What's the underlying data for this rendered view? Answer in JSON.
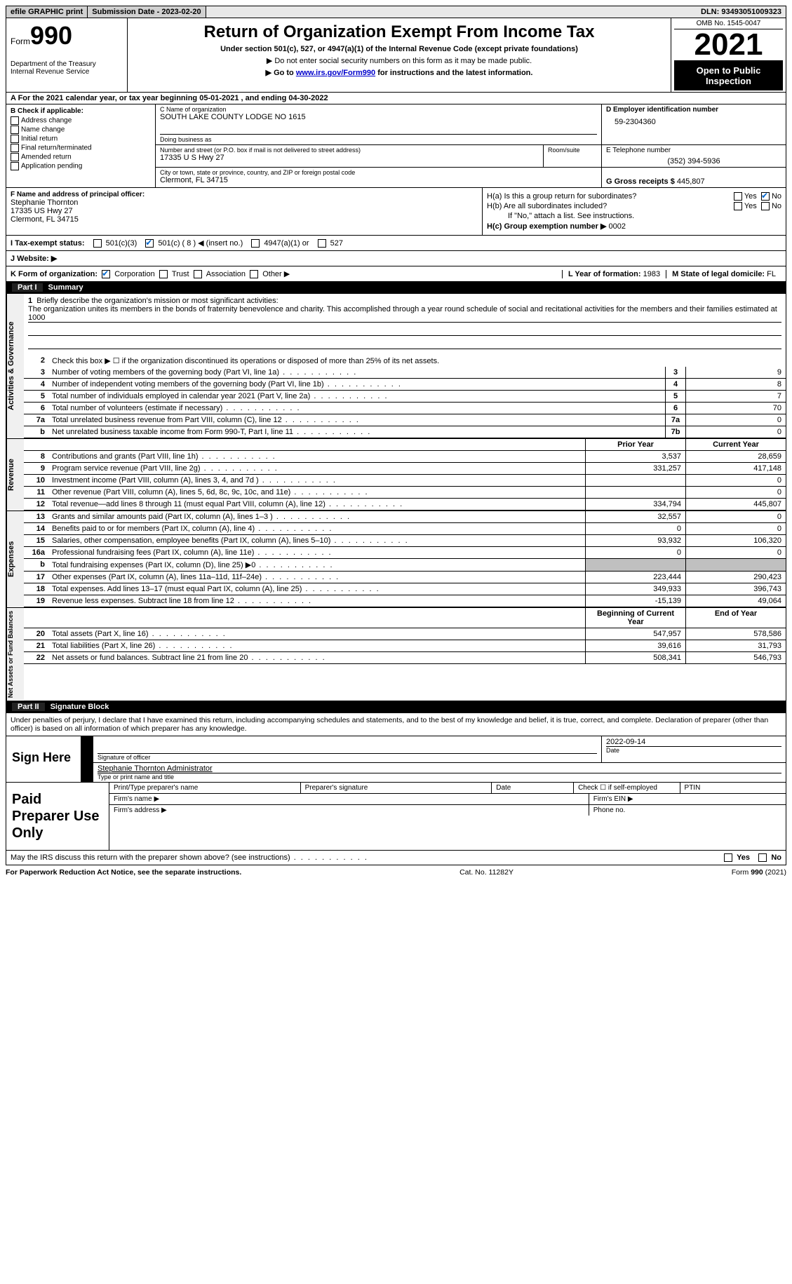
{
  "topbar": {
    "efile": "efile GRAPHIC print",
    "submission_label": "Submission Date - ",
    "submission_date": "2023-02-20",
    "dln_label": "DLN: ",
    "dln": "93493051009323"
  },
  "header": {
    "form_prefix": "Form",
    "form_number": "990",
    "dept": "Department of the Treasury\nInternal Revenue Service",
    "title": "Return of Organization Exempt From Income Tax",
    "subtitle": "Under section 501(c), 527, or 4947(a)(1) of the Internal Revenue Code (except private foundations)",
    "note1": "▶ Do not enter social security numbers on this form as it may be made public.",
    "note2_pre": "▶ Go to ",
    "note2_link": "www.irs.gov/Form990",
    "note2_post": " for instructions and the latest information.",
    "omb": "OMB No. 1545-0047",
    "year": "2021",
    "open": "Open to Public Inspection"
  },
  "rowA": {
    "text_pre": "A For the 2021 calendar year, or tax year beginning ",
    "begin": "05-01-2021",
    "text_mid": " , and ending ",
    "end": "04-30-2022"
  },
  "colB": {
    "header": "B Check if applicable:",
    "opts": [
      "Address change",
      "Name change",
      "Initial return",
      "Final return/terminated",
      "Amended return",
      "Application pending"
    ]
  },
  "colC": {
    "name_label": "C Name of organization",
    "name": "SOUTH LAKE COUNTY LODGE NO 1615",
    "dba_label": "Doing business as",
    "dba": "",
    "addr_label": "Number and street (or P.O. box if mail is not delivered to street address)",
    "room_label": "Room/suite",
    "addr": "17335 U S Hwy 27",
    "city_label": "City or town, state or province, country, and ZIP or foreign postal code",
    "city": "Clermont, FL  34715"
  },
  "colD": {
    "ein_label": "D Employer identification number",
    "ein": "59-2304360",
    "phone_label": "E Telephone number",
    "phone": "(352) 394-5936",
    "gross_label": "G Gross receipts $ ",
    "gross": "445,807"
  },
  "rowF": {
    "label": "F Name and address of principal officer:",
    "name": "Stephanie Thornton",
    "addr1": "17335 US Hwy 27",
    "addr2": "Clermont, FL  34715"
  },
  "rowH": {
    "a_label": "H(a)  Is this a group return for subordinates?",
    "a_yes": "Yes",
    "a_no": "No",
    "b_label": "H(b)  Are all subordinates included?",
    "b_yes": "Yes",
    "b_no": "No",
    "b_note": "If \"No,\" attach a list. See instructions.",
    "c_label": "H(c)  Group exemption number ▶ ",
    "c_val": "0002"
  },
  "rowI": {
    "label": "I  Tax-exempt status:",
    "o1": "501(c)(3)",
    "o2": "501(c) ( 8 ) ◀ (insert no.)",
    "o3": "4947(a)(1) or",
    "o4": "527"
  },
  "rowJ": {
    "label": "J  Website: ▶",
    "val": ""
  },
  "rowK": {
    "label": "K Form of organization:",
    "o1": "Corporation",
    "o2": "Trust",
    "o3": "Association",
    "o4": "Other ▶",
    "year_label": "L Year of formation: ",
    "year": "1983",
    "state_label": "M State of legal domicile: ",
    "state": "FL"
  },
  "part1": {
    "num": "Part I",
    "title": "Summary"
  },
  "mission": {
    "label": "Briefly describe the organization's mission or most significant activities:",
    "text": "The organization unites its members in the bonds of fraternity benevolence and charity. This accomplished through a year round schedule of social and recitational activities for the members and their families estimated at 1000"
  },
  "line2": "Check this box ▶ ☐ if the organization discontinued its operations or disposed of more than 25% of its net assets.",
  "gov_lines": [
    {
      "n": "3",
      "t": "Number of voting members of the governing body (Part VI, line 1a)",
      "box": "3",
      "v": "9"
    },
    {
      "n": "4",
      "t": "Number of independent voting members of the governing body (Part VI, line 1b)",
      "box": "4",
      "v": "8"
    },
    {
      "n": "5",
      "t": "Total number of individuals employed in calendar year 2021 (Part V, line 2a)",
      "box": "5",
      "v": "7"
    },
    {
      "n": "6",
      "t": "Total number of volunteers (estimate if necessary)",
      "box": "6",
      "v": "70"
    },
    {
      "n": "7a",
      "t": "Total unrelated business revenue from Part VIII, column (C), line 12",
      "box": "7a",
      "v": "0"
    },
    {
      "n": "b",
      "t": "Net unrelated business taxable income from Form 990-T, Part I, line 11",
      "box": "7b",
      "v": "0"
    }
  ],
  "two_col_hdr": {
    "py": "Prior Year",
    "cy": "Current Year"
  },
  "rev_lines": [
    {
      "n": "8",
      "t": "Contributions and grants (Part VIII, line 1h)",
      "py": "3,537",
      "cy": "28,659"
    },
    {
      "n": "9",
      "t": "Program service revenue (Part VIII, line 2g)",
      "py": "331,257",
      "cy": "417,148"
    },
    {
      "n": "10",
      "t": "Investment income (Part VIII, column (A), lines 3, 4, and 7d )",
      "py": "",
      "cy": "0"
    },
    {
      "n": "11",
      "t": "Other revenue (Part VIII, column (A), lines 5, 6d, 8c, 9c, 10c, and 11e)",
      "py": "",
      "cy": "0"
    },
    {
      "n": "12",
      "t": "Total revenue—add lines 8 through 11 (must equal Part VIII, column (A), line 12)",
      "py": "334,794",
      "cy": "445,807"
    }
  ],
  "exp_lines": [
    {
      "n": "13",
      "t": "Grants and similar amounts paid (Part IX, column (A), lines 1–3 )",
      "py": "32,557",
      "cy": "0"
    },
    {
      "n": "14",
      "t": "Benefits paid to or for members (Part IX, column (A), line 4)",
      "py": "0",
      "cy": "0"
    },
    {
      "n": "15",
      "t": "Salaries, other compensation, employee benefits (Part IX, column (A), lines 5–10)",
      "py": "93,932",
      "cy": "106,320"
    },
    {
      "n": "16a",
      "t": "Professional fundraising fees (Part IX, column (A), line 11e)",
      "py": "0",
      "cy": "0"
    },
    {
      "n": "b",
      "t": "Total fundraising expenses (Part IX, column (D), line 25) ▶0",
      "py": "shade",
      "cy": "shade"
    },
    {
      "n": "17",
      "t": "Other expenses (Part IX, column (A), lines 11a–11d, 11f–24e)",
      "py": "223,444",
      "cy": "290,423"
    },
    {
      "n": "18",
      "t": "Total expenses. Add lines 13–17 (must equal Part IX, column (A), line 25)",
      "py": "349,933",
      "cy": "396,743"
    },
    {
      "n": "19",
      "t": "Revenue less expenses. Subtract line 18 from line 12",
      "py": "-15,139",
      "cy": "49,064"
    }
  ],
  "na_hdr": {
    "py": "Beginning of Current Year",
    "cy": "End of Year"
  },
  "na_lines": [
    {
      "n": "20",
      "t": "Total assets (Part X, line 16)",
      "py": "547,957",
      "cy": "578,586"
    },
    {
      "n": "21",
      "t": "Total liabilities (Part X, line 26)",
      "py": "39,616",
      "cy": "31,793"
    },
    {
      "n": "22",
      "t": "Net assets or fund balances. Subtract line 21 from line 20",
      "py": "508,341",
      "cy": "546,793"
    }
  ],
  "vtabs": {
    "gov": "Activities & Governance",
    "rev": "Revenue",
    "exp": "Expenses",
    "na": "Net Assets or Fund Balances"
  },
  "part2": {
    "num": "Part II",
    "title": "Signature Block"
  },
  "sig_decl": "Under penalties of perjury, I declare that I have examined this return, including accompanying schedules and statements, and to the best of my knowledge and belief, it is true, correct, and complete. Declaration of preparer (other than officer) is based on all information of which preparer has any knowledge.",
  "sign": {
    "label": "Sign Here",
    "sig_of_officer": "Signature of officer",
    "date_label": "Date",
    "date": "2022-09-14",
    "name": "Stephanie Thornton Administrator",
    "name_label": "Type or print name and title"
  },
  "prep": {
    "label": "Paid Preparer Use Only",
    "c1": "Print/Type preparer's name",
    "c2": "Preparer's signature",
    "c3": "Date",
    "c4_pre": "Check ☐ if self-employed",
    "c5": "PTIN",
    "firm_name": "Firm's name  ▶",
    "firm_ein": "Firm's EIN ▶",
    "firm_addr": "Firm's address ▶",
    "phone": "Phone no."
  },
  "discuss": {
    "text": "May the IRS discuss this return with the preparer shown above? (see instructions)",
    "yes": "Yes",
    "no": "No"
  },
  "footer": {
    "l": "For Paperwork Reduction Act Notice, see the separate instructions.",
    "c": "Cat. No. 11282Y",
    "r": "Form 990 (2021)"
  }
}
